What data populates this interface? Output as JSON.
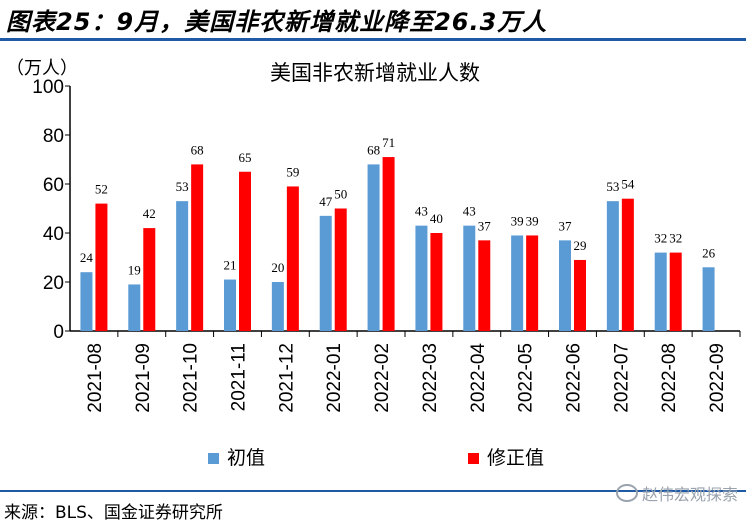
{
  "figure_title": "图表25：9月，美国非农新增就业降至26.3万人",
  "source": "来源：BLS、国金证券研究所",
  "watermark": "赵伟宏观探索",
  "chart_data": {
    "type": "bar",
    "title": "美国非农新增就业人数",
    "unit": "（万人）",
    "ylim": [
      0,
      100
    ],
    "yticks": [
      0,
      20,
      40,
      60,
      80,
      100
    ],
    "categories": [
      "2021-08",
      "2021-09",
      "2021-10",
      "2021-11",
      "2021-12",
      "2022-01",
      "2022-02",
      "2022-03",
      "2022-04",
      "2022-05",
      "2022-06",
      "2022-07",
      "2022-08",
      "2022-09"
    ],
    "series": [
      {
        "name": "初值",
        "color": "#5b9bd5",
        "values": [
          24,
          19,
          53,
          21,
          20,
          47,
          68,
          43,
          43,
          39,
          37,
          53,
          32,
          26
        ]
      },
      {
        "name": "修正值",
        "color": "#ff0000",
        "values": [
          52,
          42,
          68,
          65,
          59,
          50,
          71,
          40,
          37,
          39,
          29,
          54,
          32,
          null
        ]
      }
    ],
    "legend_position": "bottom",
    "grid": false
  }
}
